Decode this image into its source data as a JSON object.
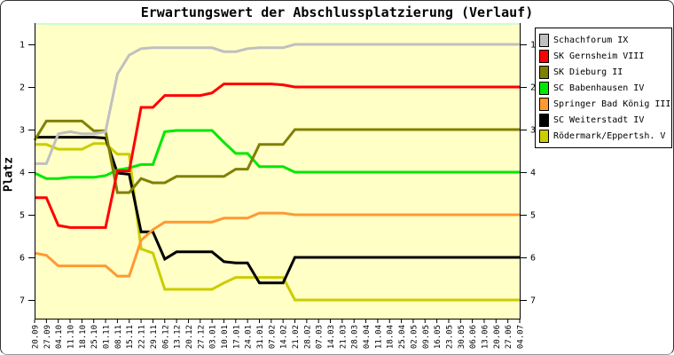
{
  "chart_data": {
    "type": "line",
    "title": "Erwartungswert der Abschlussplatzierung (Verlauf)",
    "ylabel": "Platz",
    "y_inverted": true,
    "ylim": [
      1,
      7
    ],
    "y_ticks": [
      1,
      2,
      3,
      4,
      5,
      6,
      7
    ],
    "y_ticks_shown_on": "both-sides",
    "grid": false,
    "legend_position": "outside-right",
    "plot_bg": "#FFFFC6",
    "plot_top_edge": "#CCFFCC",
    "axis_color": "#000000",
    "x_labels": [
      "20.09",
      "27.09",
      "04.10",
      "11.10",
      "18.10",
      "25.10",
      "01.11",
      "08.11",
      "15.11",
      "22.11",
      "29.11",
      "06.12",
      "13.12",
      "20.12",
      "27.12",
      "03.01",
      "10.01",
      "17.01",
      "24.01",
      "31.01",
      "07.02",
      "14.02",
      "21.02",
      "28.02",
      "07.03",
      "14.03",
      "21.03",
      "28.03",
      "04.04",
      "11.04",
      "18.04",
      "25.04",
      "02.05",
      "09.05",
      "16.05",
      "23.05",
      "30.05",
      "06.06",
      "13.06",
      "20.06",
      "27.06",
      "04.07"
    ],
    "series": [
      {
        "name": "Schachforum IX",
        "color": "#C0C0C0",
        "values": [
          3.8,
          3.8,
          3.1,
          3.05,
          3.1,
          3.1,
          3.05,
          1.7,
          1.25,
          1.1,
          1.08,
          1.08,
          1.08,
          1.08,
          1.08,
          1.08,
          1.17,
          1.17,
          1.1,
          1.08,
          1.08,
          1.08,
          1,
          1,
          1,
          1,
          1,
          1,
          1,
          1,
          1,
          1,
          1,
          1,
          1,
          1,
          1,
          1,
          1,
          1,
          1,
          1
        ]
      },
      {
        "name": "SK Gernsheim VIII",
        "color": "#FF0000",
        "values": [
          4.6,
          4.6,
          5.25,
          5.3,
          5.3,
          5.3,
          5.3,
          3.97,
          3.97,
          2.48,
          2.48,
          2.2,
          2.2,
          2.2,
          2.2,
          2.14,
          1.93,
          1.93,
          1.93,
          1.93,
          1.93,
          1.95,
          2,
          2,
          2,
          2,
          2,
          2,
          2,
          2,
          2,
          2,
          2,
          2,
          2,
          2,
          2,
          2,
          2,
          2,
          2,
          2
        ]
      },
      {
        "name": "SK Dieburg II",
        "color": "#808000",
        "values": [
          3.25,
          2.8,
          2.8,
          2.8,
          2.8,
          3.03,
          3.03,
          4.48,
          4.48,
          4.15,
          4.25,
          4.25,
          4.1,
          4.1,
          4.1,
          4.1,
          4.1,
          3.93,
          3.93,
          3.35,
          3.35,
          3.35,
          3,
          3,
          3,
          3,
          3,
          3,
          3,
          3,
          3,
          3,
          3,
          3,
          3,
          3,
          3,
          3,
          3,
          3,
          3,
          3
        ]
      },
      {
        "name": "SC Babenhausen IV",
        "color": "#00E800",
        "values": [
          4.02,
          4.15,
          4.15,
          4.12,
          4.12,
          4.12,
          4.08,
          3.95,
          3.9,
          3.82,
          3.82,
          3.05,
          3.02,
          3.02,
          3.02,
          3.02,
          3.3,
          3.56,
          3.56,
          3.87,
          3.87,
          3.87,
          4,
          4,
          4,
          4,
          4,
          4,
          4,
          4,
          4,
          4,
          4,
          4,
          4,
          4,
          4,
          4,
          4,
          4,
          4,
          4
        ]
      },
      {
        "name": "Springer Bad König III",
        "color": "#FF9933",
        "values": [
          5.9,
          5.95,
          6.2,
          6.2,
          6.2,
          6.2,
          6.2,
          6.44,
          6.44,
          5.6,
          5.35,
          5.17,
          5.17,
          5.17,
          5.17,
          5.17,
          5.08,
          5.08,
          5.08,
          4.96,
          4.96,
          4.96,
          5,
          5,
          5,
          5,
          5,
          5,
          5,
          5,
          5,
          5,
          5,
          5,
          5,
          5,
          5,
          5,
          5,
          5,
          5,
          5
        ]
      },
      {
        "name": "SC Weiterstadt IV",
        "color": "#000000",
        "values": [
          3.18,
          3.18,
          3.18,
          3.18,
          3.18,
          3.18,
          3.2,
          4.02,
          4.05,
          5.4,
          5.4,
          6.04,
          5.87,
          5.87,
          5.87,
          5.87,
          6.1,
          6.13,
          6.13,
          6.6,
          6.6,
          6.6,
          6,
          6,
          6,
          6,
          6,
          6,
          6,
          6,
          6,
          6,
          6,
          6,
          6,
          6,
          6,
          6,
          6,
          6,
          6,
          6
        ]
      },
      {
        "name": "Rödermark/Eppertsh. V",
        "color": "#CCCC00",
        "values": [
          3.35,
          3.35,
          3.46,
          3.46,
          3.46,
          3.33,
          3.33,
          3.58,
          3.58,
          5.8,
          5.9,
          6.75,
          6.75,
          6.75,
          6.75,
          6.75,
          6.6,
          6.47,
          6.47,
          6.47,
          6.47,
          6.47,
          7,
          7,
          7,
          7,
          7,
          7,
          7,
          7,
          7,
          7,
          7,
          7,
          7,
          7,
          7,
          7,
          7,
          7,
          7,
          7
        ]
      }
    ]
  }
}
